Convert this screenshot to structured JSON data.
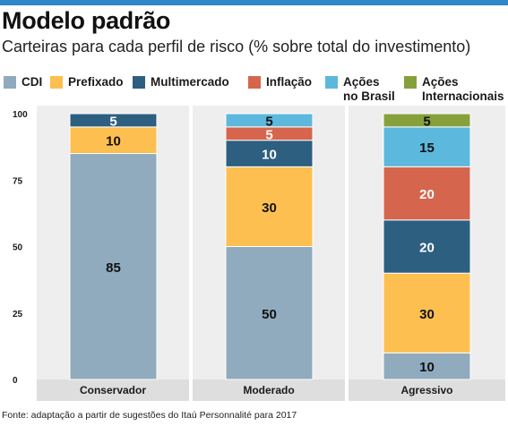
{
  "header": {
    "title": "Modelo padrão",
    "subtitle": "Carteiras para cada perfil de risco (% sobre total do investimento)"
  },
  "colors": {
    "topbar": "#2f86c8",
    "panel_bg": "#eeeeee",
    "axis_band": "#dedede"
  },
  "legend": [
    {
      "label": "CDI",
      "color": "#8fabbd"
    },
    {
      "label": "Prefixado",
      "color": "#fdbf4f"
    },
    {
      "label": "Multimercado",
      "color": "#2d5f80"
    },
    {
      "label": "Inflação",
      "color": "#d5664d"
    },
    {
      "label": "Ações\nno Brasil",
      "color": "#5db8dd"
    },
    {
      "label": "Ações\nInternacionais",
      "color": "#86a13c"
    }
  ],
  "chart_data": {
    "type": "bar",
    "stacked": true,
    "categories": [
      "Conservador",
      "Moderado",
      "Agressivo"
    ],
    "series": [
      {
        "name": "CDI",
        "color": "#8fabbd",
        "label_color": "#111111",
        "values": [
          85,
          50,
          10
        ]
      },
      {
        "name": "Prefixado",
        "color": "#fdbf4f",
        "label_color": "#111111",
        "values": [
          10,
          30,
          30
        ]
      },
      {
        "name": "Multimercado",
        "color": "#2d5f80",
        "label_color": "#ffffff",
        "values": [
          5,
          10,
          20
        ]
      },
      {
        "name": "Inflação",
        "color": "#d5664d",
        "label_color": "#ffffff",
        "values": [
          0,
          5,
          20
        ]
      },
      {
        "name": "Ações no Brasil",
        "color": "#5db8dd",
        "label_color": "#111111",
        "values": [
          0,
          5,
          15
        ]
      },
      {
        "name": "Ações Internacionais",
        "color": "#86a13c",
        "label_color": "#111111",
        "values": [
          0,
          0,
          5
        ]
      }
    ],
    "yticks": [
      0,
      25,
      50,
      75,
      100
    ],
    "ylim": [
      0,
      100
    ],
    "grid": false,
    "legend_position": "top"
  },
  "footer": {
    "source": "Fonte: adaptação a partir de sugestões do Itaú Personnalité para 2017"
  }
}
